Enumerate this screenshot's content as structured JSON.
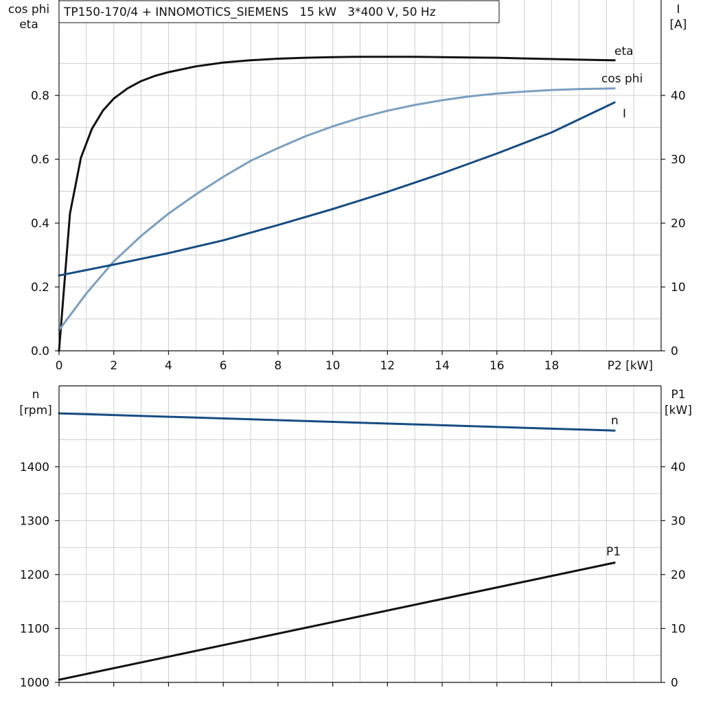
{
  "title": "TP150-170/4 + INNOMOTICS_SIEMENS   15 kW   3*400 V, 50 Hz",
  "colors": {
    "black": "#111111",
    "cosphi": "#7a9fc0",
    "current": "#154c82",
    "grid": "#cfcfcf"
  },
  "chart_data": [
    {
      "type": "line",
      "title": "TP150-170/4 + INNOMOTICS_SIEMENS   15 kW   3*400 V, 50 Hz",
      "xlabel": "P2 [kW]",
      "xlim": [
        0,
        22
      ],
      "xticks": [
        0,
        2,
        4,
        6,
        8,
        10,
        12,
        14,
        16,
        18
      ],
      "xtick_labels": [
        "0",
        "2",
        "4",
        "6",
        "8",
        "10",
        "12",
        "14",
        "16",
        "18"
      ],
      "ylabel_left": [
        "cos phi",
        "eta"
      ],
      "ylim_left": [
        0,
        1.0
      ],
      "yticks_left": [
        "0.0",
        "0.2",
        "0.4",
        "0.6",
        "0.8"
      ],
      "ylabel_right": [
        "I",
        "[A]"
      ],
      "ylim_right": [
        0,
        50
      ],
      "yticks_right": [
        "0",
        "10",
        "20",
        "30",
        "40"
      ],
      "grid": true,
      "series": [
        {
          "name": "eta",
          "axis": "left",
          "color": "#111111",
          "x": [
            0,
            0.4,
            0.8,
            1.2,
            1.6,
            2.0,
            2.5,
            3.0,
            3.5,
            4.0,
            5.0,
            6.0,
            7.0,
            8.0,
            9.0,
            10.0,
            11.0,
            12.0,
            13.0,
            14.0,
            15.0,
            16.0,
            17.0,
            18.0,
            19.0,
            20.3
          ],
          "y": [
            0.0,
            0.43,
            0.605,
            0.695,
            0.752,
            0.79,
            0.822,
            0.845,
            0.861,
            0.873,
            0.891,
            0.903,
            0.91,
            0.915,
            0.918,
            0.92,
            0.921,
            0.921,
            0.921,
            0.92,
            0.919,
            0.918,
            0.916,
            0.914,
            0.912,
            0.91
          ]
        },
        {
          "name": "cos phi",
          "axis": "left",
          "color": "#7a9fc0",
          "x": [
            0,
            1,
            2,
            3,
            4,
            5,
            6,
            7,
            8,
            9,
            10,
            11,
            12,
            13,
            14,
            15,
            16,
            17,
            18,
            19,
            20.3
          ],
          "y": [
            0.065,
            0.18,
            0.28,
            0.36,
            0.43,
            0.49,
            0.545,
            0.595,
            0.635,
            0.672,
            0.703,
            0.73,
            0.752,
            0.77,
            0.785,
            0.797,
            0.806,
            0.812,
            0.817,
            0.82,
            0.822
          ]
        },
        {
          "name": "I",
          "axis": "right",
          "color": "#154c82",
          "x": [
            0,
            2,
            4,
            6,
            8,
            10,
            12,
            14,
            16,
            18,
            20.3
          ],
          "y": [
            11.8,
            13.5,
            15.3,
            17.3,
            19.7,
            22.2,
            24.9,
            27.8,
            30.9,
            34.2,
            38.9
          ]
        }
      ]
    },
    {
      "type": "line",
      "xlim": [
        0,
        22
      ],
      "xticks": [
        0,
        2,
        4,
        6,
        8,
        10,
        12,
        14,
        16,
        18
      ],
      "ylabel_left": [
        "n",
        "[rpm]"
      ],
      "ylim_left": [
        1000,
        1550
      ],
      "yticks_left": [
        "1000",
        "1100",
        "1200",
        "1300",
        "1400"
      ],
      "ylabel_right": [
        "P1",
        "[kW]"
      ],
      "ylim_right": [
        0,
        55
      ],
      "yticks_right": [
        "0",
        "10",
        "20",
        "30",
        "40"
      ],
      "grid": true,
      "series": [
        {
          "name": "n",
          "axis": "left",
          "color": "#154c82",
          "x": [
            0,
            20.3
          ],
          "y": [
            1499,
            1467
          ]
        },
        {
          "name": "P1",
          "axis": "right",
          "color": "#111111",
          "x": [
            0,
            20.3
          ],
          "y": [
            0.5,
            22.2
          ]
        }
      ]
    }
  ]
}
